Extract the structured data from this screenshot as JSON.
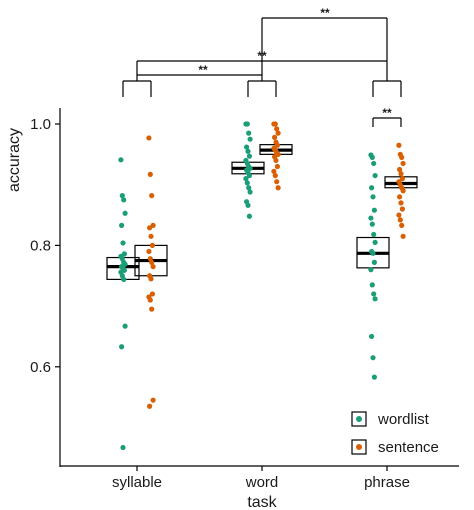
{
  "chart_data": {
    "type": "box-dot",
    "xlabel": "task",
    "ylabel": "accuracy",
    "categories": [
      "syllable",
      "word",
      "phrase"
    ],
    "ylim": [
      0.45,
      1.07
    ],
    "yticks": [
      0.6,
      0.8,
      1.0
    ],
    "ytick_labels": [
      "0.6",
      "0.8",
      "1.0"
    ],
    "legend_position": "bottom-right",
    "colors": {
      "wordlist": "#1b9e77",
      "sentence": "#d95f02"
    },
    "series": [
      {
        "name": "wordlist",
        "boxes": [
          {
            "category": "syllable",
            "q1": 0.744,
            "median": 0.765,
            "q3": 0.78
          },
          {
            "category": "word",
            "q1": 0.918,
            "median": 0.927,
            "q3": 0.937
          },
          {
            "category": "phrase",
            "q1": 0.763,
            "median": 0.787,
            "q3": 0.813
          }
        ],
        "points": {
          "syllable": [
            0.941,
            0.882,
            0.875,
            0.853,
            0.833,
            0.804,
            0.786,
            0.782,
            0.778,
            0.772,
            0.769,
            0.765,
            0.762,
            0.759,
            0.756,
            0.75,
            0.744,
            0.667,
            0.633,
            0.467
          ],
          "word": [
            1.0,
            1.0,
            0.985,
            0.975,
            0.962,
            0.955,
            0.947,
            0.94,
            0.935,
            0.93,
            0.927,
            0.924,
            0.92,
            0.915,
            0.91,
            0.903,
            0.895,
            0.888,
            0.872,
            0.866,
            0.848
          ],
          "phrase": [
            0.949,
            0.945,
            0.935,
            0.915,
            0.895,
            0.88,
            0.858,
            0.845,
            0.835,
            0.818,
            0.805,
            0.79,
            0.787,
            0.772,
            0.76,
            0.735,
            0.72,
            0.712,
            0.65,
            0.615,
            0.583
          ]
        }
      },
      {
        "name": "sentence",
        "boxes": [
          {
            "category": "syllable",
            "q1": 0.75,
            "median": 0.775,
            "q3": 0.8
          },
          {
            "category": "word",
            "q1": 0.95,
            "median": 0.957,
            "q3": 0.966
          },
          {
            "category": "phrase",
            "q1": 0.895,
            "median": 0.902,
            "q3": 0.913
          }
        ],
        "points": {
          "syllable": [
            0.977,
            0.917,
            0.882,
            0.833,
            0.829,
            0.815,
            0.8,
            0.79,
            0.778,
            0.772,
            0.765,
            0.75,
            0.745,
            0.72,
            0.715,
            0.71,
            0.695,
            0.545,
            0.535
          ],
          "word": [
            1.0,
            1.0,
            0.992,
            0.985,
            0.978,
            0.97,
            0.965,
            0.96,
            0.957,
            0.953,
            0.95,
            0.946,
            0.94,
            0.93,
            0.922,
            0.915,
            0.905,
            0.895
          ],
          "phrase": [
            0.965,
            0.95,
            0.945,
            0.935,
            0.925,
            0.918,
            0.91,
            0.905,
            0.9,
            0.895,
            0.89,
            0.88,
            0.87,
            0.86,
            0.85,
            0.842,
            0.833,
            0.815
          ]
        }
      }
    ],
    "significance": [
      {
        "label": "**",
        "between": [
          "word",
          "phrase"
        ]
      },
      {
        "label": "**",
        "between": [
          "syllable",
          "phrase"
        ]
      },
      {
        "label": "**",
        "between": [
          "syllable",
          "word"
        ]
      },
      {
        "label": "**",
        "between": [
          "phrase-wordlist",
          "phrase-sentence"
        ]
      }
    ]
  }
}
